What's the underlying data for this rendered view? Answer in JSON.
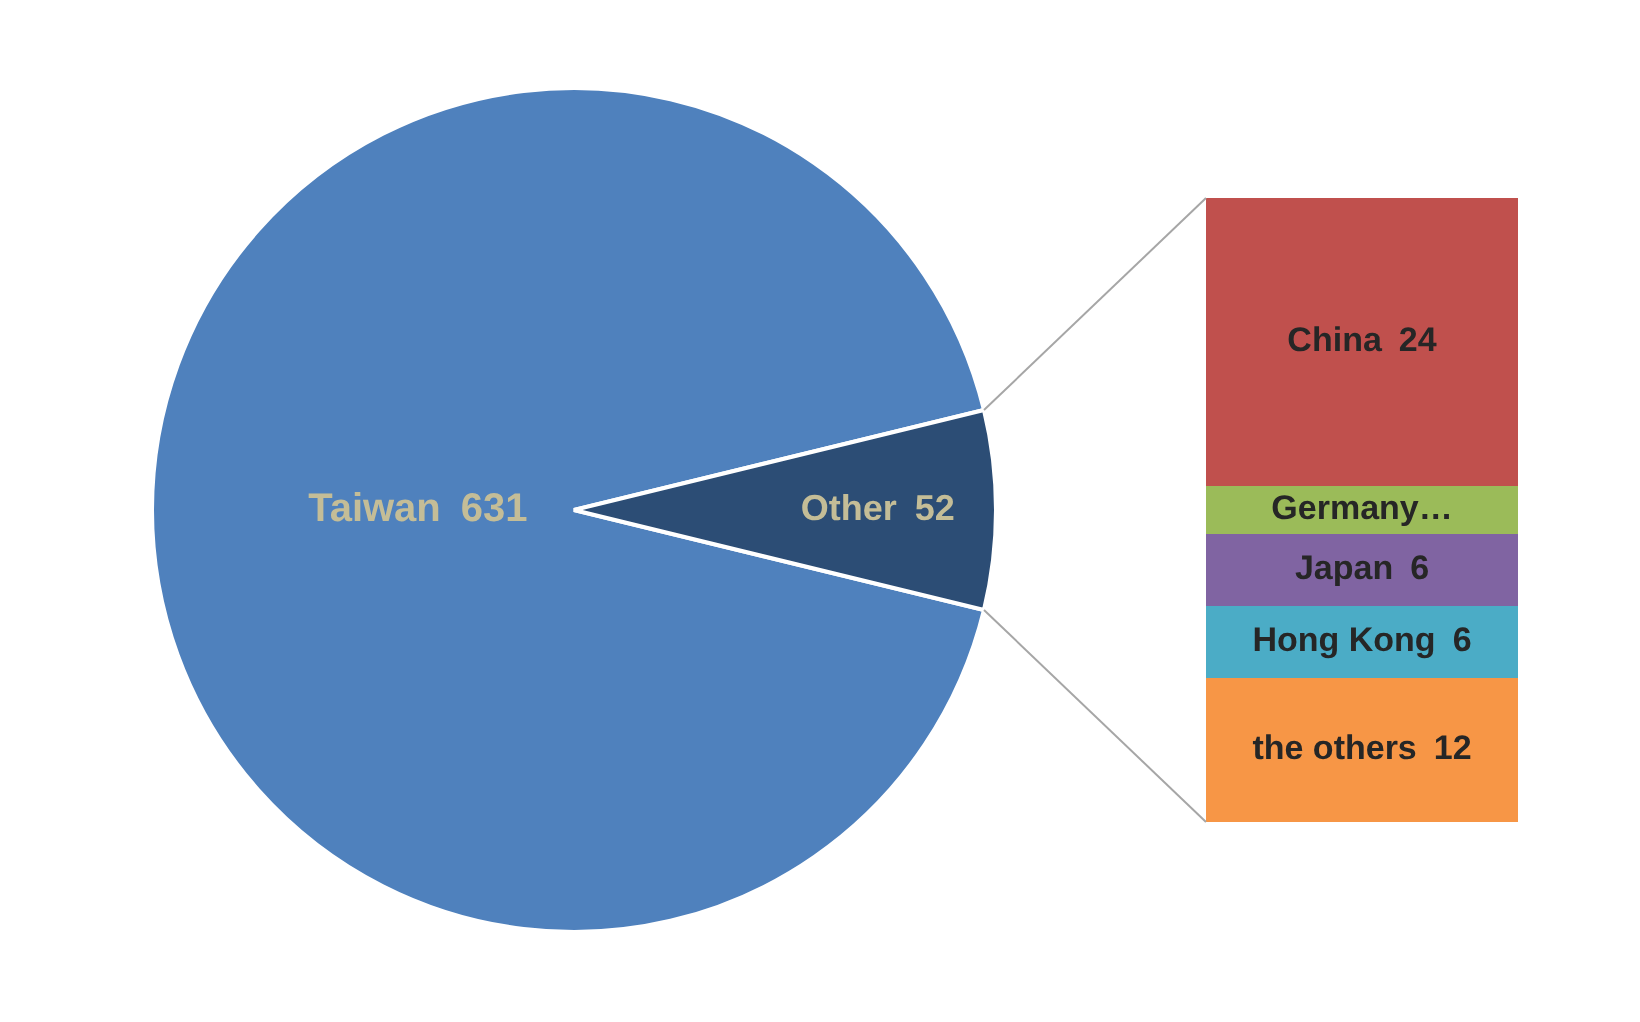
{
  "chart_data": [
    {
      "type": "pie",
      "categories": [
        "Taiwan",
        "Other"
      ],
      "values": [
        631,
        52
      ],
      "colors": [
        "#4f81bd",
        "#2c4d75"
      ],
      "data_labels": true
    },
    {
      "type": "bar",
      "stacked": true,
      "categories": [
        null
      ],
      "ylim": [
        0,
        52
      ],
      "tick_labels": false,
      "series": [
        {
          "name": "the others",
          "color": "#f79646",
          "values": [
            12
          ],
          "value_labels": [
            "12"
          ]
        },
        {
          "name": "Hong Kong",
          "color": "#4bacc6",
          "values": [
            6
          ],
          "value_labels": [
            "6"
          ]
        },
        {
          "name": "Japan",
          "color": "#8064a2",
          "values": [
            6
          ],
          "value_labels": [
            "6"
          ]
        },
        {
          "name": "Germany…",
          "color": "#9bbb59",
          "values": [
            4
          ],
          "value_labels": [
            null
          ]
        },
        {
          "name": "China",
          "color": "#c0504d",
          "values": [
            24
          ],
          "value_labels": [
            "24"
          ]
        }
      ]
    }
  ]
}
